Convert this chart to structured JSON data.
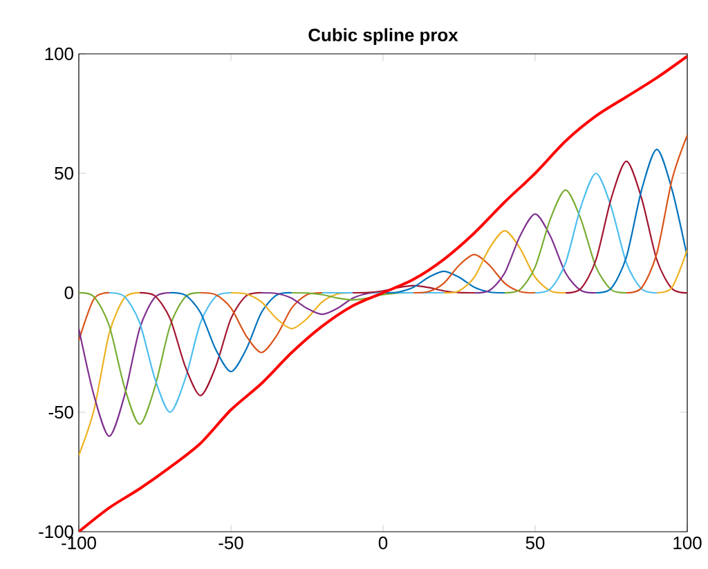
{
  "chart_data": {
    "type": "line",
    "title": "Cubic spline prox",
    "xlim": [
      -100,
      100
    ],
    "ylim": [
      -100,
      100
    ],
    "xticks": [
      -100,
      -50,
      0,
      50,
      100
    ],
    "yticks": [
      -100,
      -50,
      0,
      50,
      100
    ],
    "marker": "none",
    "line_style": "solid",
    "series": [
      {
        "color": "#d95319",
        "x": [
          -100,
          -95,
          -90
        ],
        "values": [
          -20,
          -2.5,
          0
        ]
      },
      {
        "color": "#edb120",
        "x": [
          -100,
          -95,
          -90,
          -85,
          -80
        ],
        "values": [
          -68,
          -48.9,
          -17,
          -2.1,
          0
        ]
      },
      {
        "color": "#7e2f8e",
        "x": [
          -100,
          -95,
          -90,
          -85,
          -80,
          -75,
          -70
        ],
        "values": [
          -15,
          -43.1,
          -60,
          -43.1,
          -15,
          -1.9,
          0
        ]
      },
      {
        "color": "#77ac30",
        "x": [
          -100,
          -95,
          -90,
          -85,
          -80,
          -75,
          -70,
          -65,
          -60
        ],
        "values": [
          0,
          -1.7,
          -13.8,
          -39.5,
          -55,
          -39.5,
          -13.8,
          -1.7,
          0
        ]
      },
      {
        "color": "#4dbeee",
        "x": [
          -90,
          -85,
          -80,
          -75,
          -70,
          -65,
          -60,
          -55,
          -50
        ],
        "values": [
          0,
          -1.6,
          -12.5,
          -35.9,
          -50,
          -35.9,
          -12.5,
          -1.6,
          0
        ]
      },
      {
        "color": "#a2142f",
        "x": [
          -80,
          -75,
          -70,
          -65,
          -60,
          -55,
          -50,
          -45,
          -40
        ],
        "values": [
          0,
          -1.3,
          -10.8,
          -30.9,
          -43,
          -30.9,
          -10.8,
          -1.3,
          0
        ]
      },
      {
        "color": "#0072bd",
        "x": [
          -70,
          -65,
          -60,
          -55,
          -50,
          -45,
          -40,
          -35,
          -30
        ],
        "values": [
          0,
          -1,
          -8.3,
          -23.7,
          -33,
          -23.7,
          -8.3,
          -1,
          0
        ]
      },
      {
        "color": "#d95319",
        "x": [
          -60,
          -55,
          -50,
          -45,
          -40,
          -35,
          -30,
          -25,
          -20
        ],
        "values": [
          0,
          -0.8,
          -6.3,
          -18,
          -25,
          -18,
          -6.3,
          -0.8,
          0
        ]
      },
      {
        "color": "#edb120",
        "x": [
          -50,
          -45,
          -40,
          -35,
          -30,
          -25,
          -20,
          -15,
          -10
        ],
        "values": [
          0,
          -0.5,
          -3.8,
          -10.8,
          -15,
          -10.8,
          -3.8,
          -0.5,
          0
        ]
      },
      {
        "color": "#7e2f8e",
        "x": [
          -40,
          -35,
          -30,
          -25,
          -20,
          -15,
          -10,
          -5,
          0
        ],
        "values": [
          0,
          -0.3,
          -2.3,
          -6.5,
          -9,
          -6.5,
          -2.3,
          -0.3,
          0
        ]
      },
      {
        "color": "#77ac30",
        "x": [
          -30,
          -25,
          -20,
          -15,
          -10,
          -5,
          0,
          5,
          10
        ],
        "values": [
          0,
          -0.1,
          -0.8,
          -2.2,
          -3,
          -2.2,
          -0.8,
          -0.1,
          0
        ]
      },
      {
        "color": "#4dbeee",
        "x": [
          -20,
          -15,
          -10,
          -5,
          0,
          5,
          10,
          15,
          20
        ],
        "values": [
          0,
          0,
          0,
          0,
          0,
          0,
          0,
          0,
          0
        ]
      },
      {
        "color": "#a2142f",
        "x": [
          -10,
          -5,
          0,
          5,
          10,
          15,
          20,
          25,
          30
        ],
        "values": [
          0,
          0.1,
          0.8,
          2.2,
          3,
          2.2,
          0.8,
          0.1,
          0
        ]
      },
      {
        "color": "#0072bd",
        "x": [
          0,
          5,
          10,
          15,
          20,
          25,
          30,
          35,
          40
        ],
        "values": [
          0,
          0.3,
          2.3,
          6.5,
          9,
          6.5,
          2.3,
          0.3,
          0
        ]
      },
      {
        "color": "#d95319",
        "x": [
          10,
          15,
          20,
          25,
          30,
          35,
          40,
          45,
          50
        ],
        "values": [
          0,
          0.5,
          4,
          11.5,
          16,
          11.5,
          4,
          0.5,
          0
        ]
      },
      {
        "color": "#edb120",
        "x": [
          20,
          25,
          30,
          35,
          40,
          45,
          50,
          55,
          60
        ],
        "values": [
          0,
          0.8,
          6.5,
          18.7,
          26,
          18.7,
          6.5,
          0.8,
          0
        ]
      },
      {
        "color": "#7e2f8e",
        "x": [
          30,
          35,
          40,
          45,
          50,
          55,
          60,
          65,
          70
        ],
        "values": [
          0,
          1,
          8.3,
          23.7,
          33,
          23.7,
          8.3,
          1,
          0
        ]
      },
      {
        "color": "#77ac30",
        "x": [
          40,
          45,
          50,
          55,
          60,
          65,
          70,
          75,
          80
        ],
        "values": [
          0,
          1.3,
          10.8,
          30.9,
          43,
          30.9,
          10.8,
          1.3,
          0
        ]
      },
      {
        "color": "#4dbeee",
        "x": [
          50,
          55,
          60,
          65,
          70,
          75,
          80,
          85,
          90
        ],
        "values": [
          0,
          1.6,
          12.5,
          35.9,
          50,
          35.9,
          12.5,
          1.6,
          0
        ]
      },
      {
        "color": "#a2142f",
        "x": [
          60,
          65,
          70,
          75,
          80,
          85,
          90,
          95,
          100
        ],
        "values": [
          0,
          1.7,
          13.8,
          39.5,
          55,
          39.5,
          13.8,
          1.7,
          0
        ]
      },
      {
        "color": "#0072bd",
        "x": [
          70,
          75,
          80,
          85,
          90,
          95,
          100
        ],
        "values": [
          0,
          1.9,
          15,
          43.1,
          60,
          43.1,
          15
        ]
      },
      {
        "color": "#d95319",
        "x": [
          80,
          85,
          90,
          95,
          100
        ],
        "values": [
          0,
          2.1,
          16.5,
          47.4,
          66
        ]
      },
      {
        "color": "#edb120",
        "x": [
          90,
          95,
          100
        ],
        "values": [
          0,
          2.3,
          18
        ]
      },
      {
        "color": "#ff0000",
        "x": [
          -100,
          -90,
          -80,
          -70,
          -60,
          -50,
          -40,
          -30,
          -20,
          -10,
          0,
          10,
          20,
          30,
          40,
          50,
          60,
          70,
          80,
          90,
          100
        ],
        "values": [
          -100,
          -90,
          -82,
          -73,
          -63,
          -49,
          -38,
          -25,
          -14,
          -5.5,
          0,
          5.6,
          14,
          25,
          38,
          50,
          63.5,
          74,
          82,
          90,
          99
        ]
      }
    ]
  }
}
